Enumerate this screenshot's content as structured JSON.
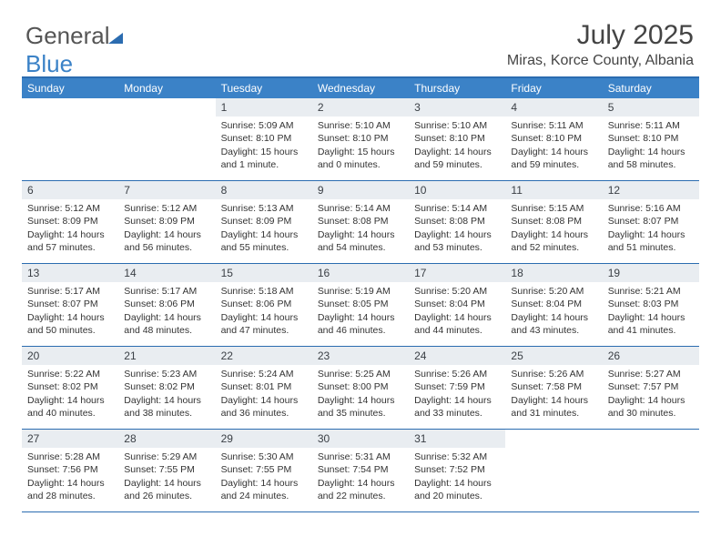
{
  "brand": {
    "part1": "General",
    "part2": "Blue"
  },
  "header": {
    "title": "July 2025",
    "location": "Miras, Korce County, Albania"
  },
  "colors": {
    "accent": "#3b82c7",
    "rule": "#2b6cb0",
    "daynum_bg": "#e9edf1",
    "text": "#333333"
  },
  "daysOfWeek": [
    "Sunday",
    "Monday",
    "Tuesday",
    "Wednesday",
    "Thursday",
    "Friday",
    "Saturday"
  ],
  "weeks": [
    [
      {
        "n": "",
        "sr": "",
        "ss": "",
        "dl1": "",
        "dl2": ""
      },
      {
        "n": "",
        "sr": "",
        "ss": "",
        "dl1": "",
        "dl2": ""
      },
      {
        "n": "1",
        "sr": "Sunrise: 5:09 AM",
        "ss": "Sunset: 8:10 PM",
        "dl1": "Daylight: 15 hours",
        "dl2": "and 1 minute."
      },
      {
        "n": "2",
        "sr": "Sunrise: 5:10 AM",
        "ss": "Sunset: 8:10 PM",
        "dl1": "Daylight: 15 hours",
        "dl2": "and 0 minutes."
      },
      {
        "n": "3",
        "sr": "Sunrise: 5:10 AM",
        "ss": "Sunset: 8:10 PM",
        "dl1": "Daylight: 14 hours",
        "dl2": "and 59 minutes."
      },
      {
        "n": "4",
        "sr": "Sunrise: 5:11 AM",
        "ss": "Sunset: 8:10 PM",
        "dl1": "Daylight: 14 hours",
        "dl2": "and 59 minutes."
      },
      {
        "n": "5",
        "sr": "Sunrise: 5:11 AM",
        "ss": "Sunset: 8:10 PM",
        "dl1": "Daylight: 14 hours",
        "dl2": "and 58 minutes."
      }
    ],
    [
      {
        "n": "6",
        "sr": "Sunrise: 5:12 AM",
        "ss": "Sunset: 8:09 PM",
        "dl1": "Daylight: 14 hours",
        "dl2": "and 57 minutes."
      },
      {
        "n": "7",
        "sr": "Sunrise: 5:12 AM",
        "ss": "Sunset: 8:09 PM",
        "dl1": "Daylight: 14 hours",
        "dl2": "and 56 minutes."
      },
      {
        "n": "8",
        "sr": "Sunrise: 5:13 AM",
        "ss": "Sunset: 8:09 PM",
        "dl1": "Daylight: 14 hours",
        "dl2": "and 55 minutes."
      },
      {
        "n": "9",
        "sr": "Sunrise: 5:14 AM",
        "ss": "Sunset: 8:08 PM",
        "dl1": "Daylight: 14 hours",
        "dl2": "and 54 minutes."
      },
      {
        "n": "10",
        "sr": "Sunrise: 5:14 AM",
        "ss": "Sunset: 8:08 PM",
        "dl1": "Daylight: 14 hours",
        "dl2": "and 53 minutes."
      },
      {
        "n": "11",
        "sr": "Sunrise: 5:15 AM",
        "ss": "Sunset: 8:08 PM",
        "dl1": "Daylight: 14 hours",
        "dl2": "and 52 minutes."
      },
      {
        "n": "12",
        "sr": "Sunrise: 5:16 AM",
        "ss": "Sunset: 8:07 PM",
        "dl1": "Daylight: 14 hours",
        "dl2": "and 51 minutes."
      }
    ],
    [
      {
        "n": "13",
        "sr": "Sunrise: 5:17 AM",
        "ss": "Sunset: 8:07 PM",
        "dl1": "Daylight: 14 hours",
        "dl2": "and 50 minutes."
      },
      {
        "n": "14",
        "sr": "Sunrise: 5:17 AM",
        "ss": "Sunset: 8:06 PM",
        "dl1": "Daylight: 14 hours",
        "dl2": "and 48 minutes."
      },
      {
        "n": "15",
        "sr": "Sunrise: 5:18 AM",
        "ss": "Sunset: 8:06 PM",
        "dl1": "Daylight: 14 hours",
        "dl2": "and 47 minutes."
      },
      {
        "n": "16",
        "sr": "Sunrise: 5:19 AM",
        "ss": "Sunset: 8:05 PM",
        "dl1": "Daylight: 14 hours",
        "dl2": "and 46 minutes."
      },
      {
        "n": "17",
        "sr": "Sunrise: 5:20 AM",
        "ss": "Sunset: 8:04 PM",
        "dl1": "Daylight: 14 hours",
        "dl2": "and 44 minutes."
      },
      {
        "n": "18",
        "sr": "Sunrise: 5:20 AM",
        "ss": "Sunset: 8:04 PM",
        "dl1": "Daylight: 14 hours",
        "dl2": "and 43 minutes."
      },
      {
        "n": "19",
        "sr": "Sunrise: 5:21 AM",
        "ss": "Sunset: 8:03 PM",
        "dl1": "Daylight: 14 hours",
        "dl2": "and 41 minutes."
      }
    ],
    [
      {
        "n": "20",
        "sr": "Sunrise: 5:22 AM",
        "ss": "Sunset: 8:02 PM",
        "dl1": "Daylight: 14 hours",
        "dl2": "and 40 minutes."
      },
      {
        "n": "21",
        "sr": "Sunrise: 5:23 AM",
        "ss": "Sunset: 8:02 PM",
        "dl1": "Daylight: 14 hours",
        "dl2": "and 38 minutes."
      },
      {
        "n": "22",
        "sr": "Sunrise: 5:24 AM",
        "ss": "Sunset: 8:01 PM",
        "dl1": "Daylight: 14 hours",
        "dl2": "and 36 minutes."
      },
      {
        "n": "23",
        "sr": "Sunrise: 5:25 AM",
        "ss": "Sunset: 8:00 PM",
        "dl1": "Daylight: 14 hours",
        "dl2": "and 35 minutes."
      },
      {
        "n": "24",
        "sr": "Sunrise: 5:26 AM",
        "ss": "Sunset: 7:59 PM",
        "dl1": "Daylight: 14 hours",
        "dl2": "and 33 minutes."
      },
      {
        "n": "25",
        "sr": "Sunrise: 5:26 AM",
        "ss": "Sunset: 7:58 PM",
        "dl1": "Daylight: 14 hours",
        "dl2": "and 31 minutes."
      },
      {
        "n": "26",
        "sr": "Sunrise: 5:27 AM",
        "ss": "Sunset: 7:57 PM",
        "dl1": "Daylight: 14 hours",
        "dl2": "and 30 minutes."
      }
    ],
    [
      {
        "n": "27",
        "sr": "Sunrise: 5:28 AM",
        "ss": "Sunset: 7:56 PM",
        "dl1": "Daylight: 14 hours",
        "dl2": "and 28 minutes."
      },
      {
        "n": "28",
        "sr": "Sunrise: 5:29 AM",
        "ss": "Sunset: 7:55 PM",
        "dl1": "Daylight: 14 hours",
        "dl2": "and 26 minutes."
      },
      {
        "n": "29",
        "sr": "Sunrise: 5:30 AM",
        "ss": "Sunset: 7:55 PM",
        "dl1": "Daylight: 14 hours",
        "dl2": "and 24 minutes."
      },
      {
        "n": "30",
        "sr": "Sunrise: 5:31 AM",
        "ss": "Sunset: 7:54 PM",
        "dl1": "Daylight: 14 hours",
        "dl2": "and 22 minutes."
      },
      {
        "n": "31",
        "sr": "Sunrise: 5:32 AM",
        "ss": "Sunset: 7:52 PM",
        "dl1": "Daylight: 14 hours",
        "dl2": "and 20 minutes."
      },
      {
        "n": "",
        "sr": "",
        "ss": "",
        "dl1": "",
        "dl2": ""
      },
      {
        "n": "",
        "sr": "",
        "ss": "",
        "dl1": "",
        "dl2": ""
      }
    ]
  ]
}
